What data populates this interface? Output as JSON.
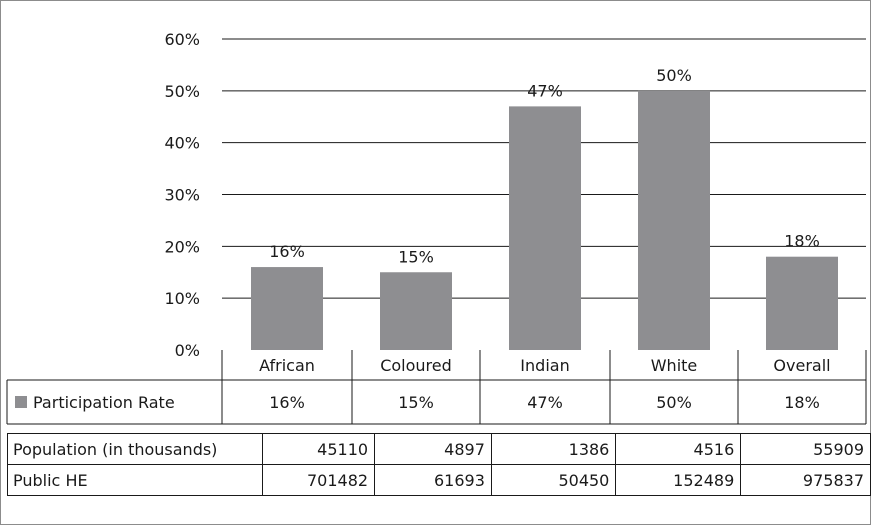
{
  "chart_data": {
    "type": "bar",
    "categories": [
      "African",
      "Coloured",
      "Indian",
      "White",
      "Overall"
    ],
    "series": [
      {
        "name": "Participation Rate",
        "values": [
          16,
          15,
          47,
          50,
          18
        ],
        "color": "#8e8e91"
      }
    ],
    "data_labels": [
      "16%",
      "15%",
      "47%",
      "50%",
      "18%"
    ],
    "y_ticks": [
      "0%",
      "10%",
      "20%",
      "30%",
      "40%",
      "50%",
      "60%"
    ],
    "ylim": [
      0,
      60
    ],
    "grid": true,
    "legend": "data-table-row",
    "title": "",
    "xlabel": "",
    "ylabel": ""
  },
  "table": {
    "rows": [
      {
        "label": "Population (in thousands)",
        "values": [
          "45110",
          "4897",
          "1386",
          "4516",
          "55909"
        ]
      },
      {
        "label": "Public HE",
        "values": [
          "701482",
          "61693",
          "50450",
          "152489",
          "975837"
        ]
      }
    ]
  }
}
